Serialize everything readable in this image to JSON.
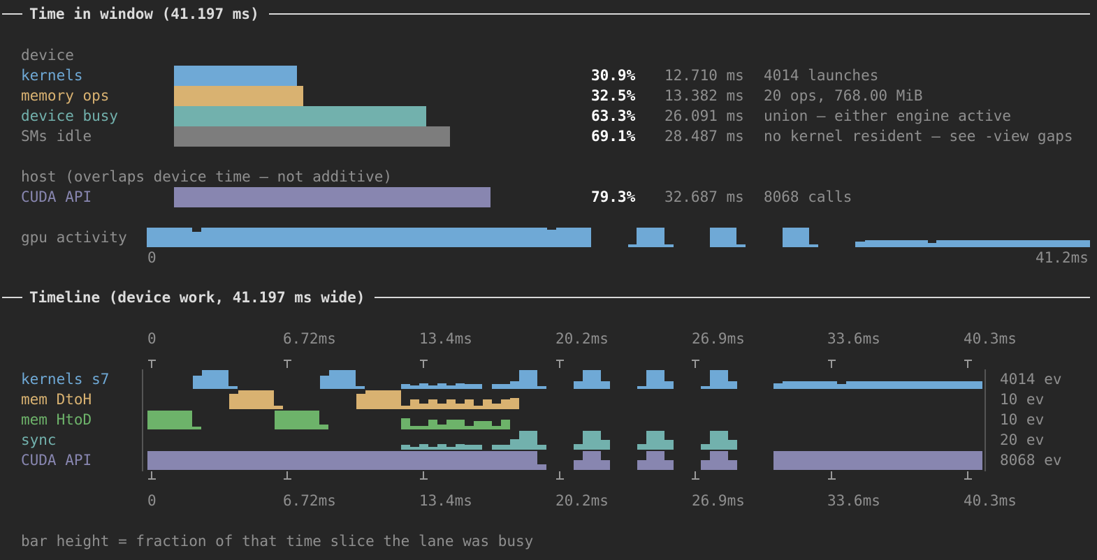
{
  "section1": {
    "title": "Time in window (41.197 ms)"
  },
  "device": {
    "heading": "device",
    "rows": [
      {
        "label": "kernels",
        "percent": "30.9%",
        "fraction": 0.309,
        "duration": "12.710 ms",
        "detail": "4014 launches",
        "color": "#6fa9d6"
      },
      {
        "label": "memory ops",
        "percent": "32.5%",
        "fraction": 0.325,
        "duration": "13.382 ms",
        "detail": "20 ops, 768.00 MiB",
        "color": "#d9b271"
      },
      {
        "label": "device busy",
        "percent": "63.3%",
        "fraction": 0.633,
        "duration": "26.091 ms",
        "detail": "union — either engine active",
        "color": "#72b1ad"
      },
      {
        "label": "SMs idle",
        "percent": "69.1%",
        "fraction": 0.691,
        "duration": "28.487 ms",
        "detail": "no kernel resident — see -view gaps",
        "color": "#7d7d7d"
      }
    ]
  },
  "host": {
    "heading": "host (overlaps device time — not additive)",
    "rows": [
      {
        "label": "CUDA API",
        "percent": "79.3%",
        "fraction": 0.793,
        "duration": "32.687 ms",
        "detail": "8068 calls",
        "color": "#8886b0"
      }
    ]
  },
  "gpu_activity": {
    "label": "gpu activity",
    "axis_start": "0",
    "axis_end": "41.2ms",
    "color": "#6fa9d6"
  },
  "section2": {
    "title": "Timeline (device work, 41.197 ms wide)"
  },
  "timeline": {
    "ticks": [
      "0",
      "6.72ms",
      "13.4ms",
      "20.2ms",
      "26.9ms",
      "33.6ms",
      "40.3ms"
    ],
    "lanes": [
      {
        "label": "kernels s7",
        "count": "4014 ev",
        "color": "#6fa9d6"
      },
      {
        "label": "mem DtoH",
        "count": "10 ev",
        "color": "#d9b271"
      },
      {
        "label": "mem HtoD",
        "count": "10 ev",
        "color": "#6db36a"
      },
      {
        "label": "sync",
        "count": "20 ev",
        "color": "#72b1ad"
      },
      {
        "label": "CUDA API",
        "count": "8068 ev",
        "color": "#8886b0"
      }
    ]
  },
  "footer": "bar height = fraction of that time slice the lane was busy"
}
